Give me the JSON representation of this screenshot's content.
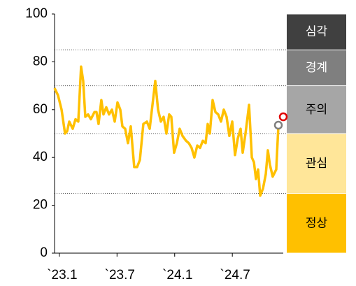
{
  "chart_data": {
    "type": "line",
    "xlim": [
      -0.5,
      23.3
    ],
    "xticks": [
      {
        "value": 0,
        "label": "`23.1"
      },
      {
        "value": 6,
        "label": "`23.7"
      },
      {
        "value": 12,
        "label": "`24.1"
      },
      {
        "value": 18,
        "label": "`24.7"
      }
    ],
    "ylim": [
      0,
      100
    ],
    "yticks": [
      0,
      20,
      40,
      60,
      80,
      100
    ],
    "x": [
      -0.5,
      -0.14,
      0.23,
      0.59,
      0.81,
      1.03,
      1.39,
      1.68,
      1.97,
      2.26,
      2.48,
      2.7,
      2.99,
      3.28,
      3.65,
      3.86,
      4.08,
      4.37,
      4.59,
      4.88,
      5.17,
      5.47,
      5.76,
      6.05,
      6.34,
      6.56,
      6.85,
      7.14,
      7.43,
      7.79,
      8.09,
      8.38,
      8.74,
      9.11,
      9.4,
      9.69,
      9.98,
      10.27,
      10.56,
      10.85,
      11.14,
      11.43,
      11.65,
      11.94,
      12.23,
      12.52,
      12.82,
      13.18,
      13.47,
      13.76,
      14.05,
      14.35,
      14.64,
      14.93,
      15.22,
      15.44,
      15.66,
      15.95,
      16.24,
      16.53,
      16.82,
      17.11,
      17.4,
      17.69,
      17.99,
      18.28,
      18.57,
      18.86,
      19.08,
      19.37,
      19.74,
      20.03,
      20.25,
      20.46,
      20.68,
      20.9,
      21.19,
      21.48,
      21.7,
      21.91,
      22.2,
      22.57,
      22.79
    ],
    "series": [
      {
        "color": "#ffc000",
        "values": [
          69,
          66,
          60,
          50,
          51,
          55,
          52,
          56,
          55,
          78,
          72,
          57,
          58,
          56,
          59,
          59,
          54,
          64,
          58,
          61,
          58,
          60,
          55,
          63,
          60,
          53,
          52,
          46,
          53,
          36,
          36,
          39,
          54,
          55,
          52,
          62,
          72,
          60,
          55,
          57,
          50,
          58,
          57,
          42,
          46,
          52,
          49,
          47,
          46,
          44,
          40,
          45,
          44,
          47,
          46,
          54,
          50,
          64,
          59,
          58,
          55,
          60,
          57,
          49,
          55,
          41,
          48,
          52,
          42,
          50,
          62,
          40,
          38,
          31,
          35,
          24,
          27,
          33,
          43,
          37,
          32,
          35,
          53
        ]
      }
    ],
    "points": [
      {
        "x": 22.79,
        "value": 53.5,
        "color": "#7f7f7f"
      },
      {
        "x": 23.3,
        "value": 57,
        "color": "#e00000"
      }
    ],
    "zones": [
      {
        "label": "심각",
        "from": 85,
        "to": 100,
        "color": "#404040",
        "text_color": "#ffffff"
      },
      {
        "label": "경계",
        "from": 70,
        "to": 85,
        "color": "#7f7f7f",
        "text_color": "#ffffff"
      },
      {
        "label": "주의",
        "from": 50,
        "to": 70,
        "color": "#a6a6a6",
        "text_color": "#000000"
      },
      {
        "label": "관심",
        "from": 25,
        "to": 50,
        "color": "#ffe699",
        "text_color": "#000000"
      },
      {
        "label": "정상",
        "from": 0,
        "to": 25,
        "color": "#ffc000",
        "text_color": "#000000"
      }
    ]
  }
}
